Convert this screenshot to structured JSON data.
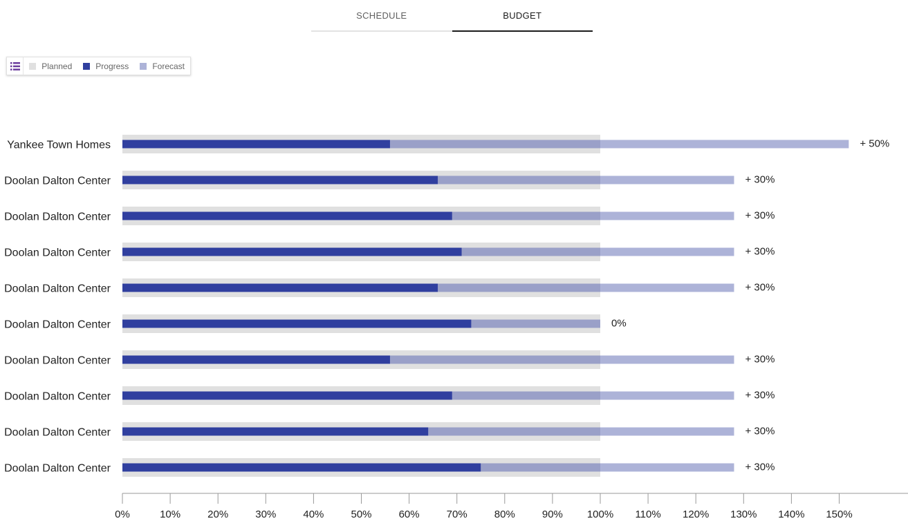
{
  "tabs": [
    {
      "label": "SCHEDULE",
      "active": false
    },
    {
      "label": "BUDGET",
      "active": true
    }
  ],
  "legend": {
    "toggle_icon": "list-icon",
    "items": [
      {
        "label": "Planned",
        "color": "#e0e0e0"
      },
      {
        "label": "Progress",
        "color": "#303f9f"
      },
      {
        "label": "Forecast",
        "color": "#adb3d8"
      }
    ]
  },
  "colors": {
    "planned": "#e0e0e0",
    "progress": "#303f9f",
    "forecast": "#adb3d8",
    "forecast_overlap": "#9aa0c8",
    "toggle_icon": "#6a3b9c"
  },
  "chart_data": {
    "type": "bar",
    "orientation": "horizontal",
    "categories": [
      "Yankee Town Homes",
      "Doolan Dalton Center",
      "Doolan Dalton Center",
      "Doolan Dalton Center",
      "Doolan Dalton Center",
      "Doolan Dalton Center",
      "Doolan Dalton Center",
      "Doolan Dalton Center",
      "Doolan Dalton Center",
      "Doolan Dalton Center"
    ],
    "series": [
      {
        "name": "Planned",
        "values": [
          100,
          100,
          100,
          100,
          100,
          100,
          100,
          100,
          100,
          100
        ]
      },
      {
        "name": "Progress",
        "values": [
          56,
          66,
          69,
          71,
          66,
          73,
          56,
          69,
          64,
          75
        ]
      },
      {
        "name": "Forecast",
        "values": [
          152,
          128,
          128,
          128,
          128,
          100,
          128,
          128,
          128,
          128
        ]
      }
    ],
    "annotations": [
      "+ 50%",
      "+ 30%",
      "+ 30%",
      "+ 30%",
      "+ 30%",
      "0%",
      "+ 30%",
      "+ 30%",
      "+ 30%",
      "+ 30%"
    ],
    "x_ticks": [
      "0%",
      "10%",
      "20%",
      "30%",
      "40%",
      "50%",
      "60%",
      "70%",
      "80%",
      "90%",
      "100%",
      "110%",
      "120%",
      "130%",
      "140%",
      "150%"
    ],
    "xlim": [
      0,
      164
    ],
    "grid": false,
    "legend_position": "top-left"
  }
}
